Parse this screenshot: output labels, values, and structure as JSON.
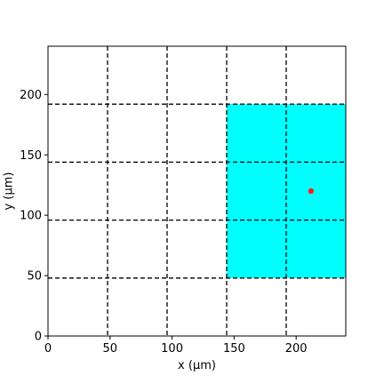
{
  "chart_data": {
    "type": "scatter",
    "title": "",
    "xlabel": "x (μm)",
    "ylabel": "y (μm)",
    "xlim": [
      0,
      240
    ],
    "ylim": [
      0,
      240
    ],
    "x_ticks": [
      0,
      50,
      100,
      150,
      200
    ],
    "y_ticks": [
      0,
      50,
      100,
      150,
      200
    ],
    "x_tick_labels": [
      "0",
      "50",
      "100",
      "150",
      "200"
    ],
    "y_tick_labels": [
      "0",
      "50",
      "100",
      "150",
      "200"
    ],
    "grid_lines_x": [
      48,
      96,
      144,
      192
    ],
    "grid_lines_y": [
      48,
      96,
      144,
      192
    ],
    "grid_style": "dashed",
    "highlight_region": {
      "x": [
        144,
        240
      ],
      "y": [
        48,
        192
      ],
      "color": "#00ffff"
    },
    "points": [
      {
        "x": 212,
        "y": 120,
        "color": "#ff2020"
      }
    ]
  }
}
